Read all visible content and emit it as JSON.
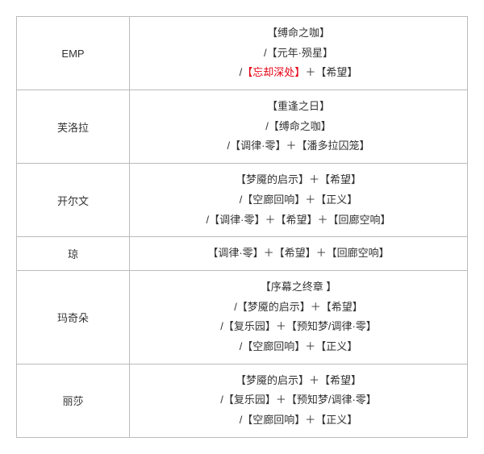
{
  "table": {
    "colors": {
      "border": "#bbbbbb",
      "text": "#333333",
      "highlight": "#e60012",
      "background": "#ffffff"
    },
    "rows": [
      {
        "name": "EMP",
        "lines": [
          {
            "parts": [
              {
                "text": "【缚命之咖】"
              }
            ]
          },
          {
            "parts": [
              {
                "text": "/【元年·殒星】"
              }
            ]
          },
          {
            "parts": [
              {
                "text": "/"
              },
              {
                "text": "【忘却深处】",
                "highlight": true
              },
              {
                "text": "＋【希望】"
              }
            ]
          }
        ]
      },
      {
        "name": "芙洛拉",
        "lines": [
          {
            "parts": [
              {
                "text": "【重逢之日】"
              }
            ]
          },
          {
            "parts": [
              {
                "text": "/【缚命之咖】"
              }
            ]
          },
          {
            "parts": [
              {
                "text": "/【调律·零】＋【潘多拉囚笼】"
              }
            ]
          }
        ]
      },
      {
        "name": "开尔文",
        "lines": [
          {
            "parts": [
              {
                "text": "【梦魇的启示】＋【希望】"
              }
            ]
          },
          {
            "parts": [
              {
                "text": "/【空廊回响】＋【正义】"
              }
            ]
          },
          {
            "parts": [
              {
                "text": "/【调律·零】＋【希望】＋【回廊空响】"
              }
            ]
          }
        ]
      },
      {
        "name": "琼",
        "lines": [
          {
            "parts": [
              {
                "text": "【调律·零】＋【希望】＋【回廊空响】"
              }
            ]
          }
        ]
      },
      {
        "name": "玛奇朵",
        "lines": [
          {
            "parts": [
              {
                "text": "【序幕之终章 】"
              }
            ]
          },
          {
            "parts": [
              {
                "text": "/【梦魇的启示】＋【希望】"
              }
            ]
          },
          {
            "parts": [
              {
                "text": "/【复乐园】＋【预知梦/调律·零】"
              }
            ]
          },
          {
            "parts": [
              {
                "text": "/【空廊回响】＋【正义】"
              }
            ]
          }
        ]
      },
      {
        "name": "丽莎",
        "lines": [
          {
            "parts": [
              {
                "text": "【梦魇的启示】＋【希望】"
              }
            ]
          },
          {
            "parts": [
              {
                "text": "/【复乐园】＋【预知梦/调律·零】"
              }
            ]
          },
          {
            "parts": [
              {
                "text": "/【空廊回响】＋【正义】"
              }
            ]
          }
        ]
      }
    ]
  }
}
